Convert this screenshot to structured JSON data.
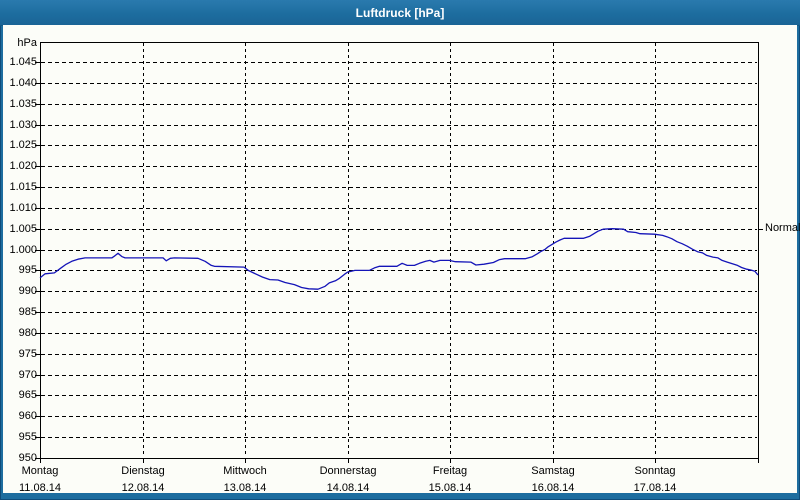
{
  "window": {
    "title": "Luftdruck [hPa]"
  },
  "colors": {
    "title_bar": "#1d6d9f",
    "line": "#1414b8",
    "grid": "#000000",
    "plot_background": "#fcfdf8"
  },
  "chart_data": {
    "type": "line",
    "title": "Luftdruck [hPa]",
    "unit_label": "hPa",
    "ylim": [
      950,
      1050
    ],
    "grid": "dashed",
    "legend_position": "none",
    "yticks": [
      {
        "value": 1045,
        "label": "1.045"
      },
      {
        "value": 1040,
        "label": "1.040"
      },
      {
        "value": 1035,
        "label": "1.035"
      },
      {
        "value": 1030,
        "label": "1.030"
      },
      {
        "value": 1025,
        "label": "1.025"
      },
      {
        "value": 1020,
        "label": "1.020"
      },
      {
        "value": 1015,
        "label": "1.015"
      },
      {
        "value": 1010,
        "label": "1.010"
      },
      {
        "value": 1005,
        "label": "1.005"
      },
      {
        "value": 1000,
        "label": "1.000"
      },
      {
        "value": 995,
        "label": "995"
      },
      {
        "value": 990,
        "label": "990"
      },
      {
        "value": 985,
        "label": "985"
      },
      {
        "value": 980,
        "label": "980"
      },
      {
        "value": 975,
        "label": "975"
      },
      {
        "value": 970,
        "label": "970"
      },
      {
        "value": 965,
        "label": "965"
      },
      {
        "value": 960,
        "label": "960"
      },
      {
        "value": 955,
        "label": "955"
      },
      {
        "value": 950,
        "label": "950"
      }
    ],
    "xdays": [
      {
        "name": "Montag",
        "date": "11.08.14"
      },
      {
        "name": "Dienstag",
        "date": "12.08.14"
      },
      {
        "name": "Mittwoch",
        "date": "13.08.14"
      },
      {
        "name": "Donnerstag",
        "date": "14.08.14"
      },
      {
        "name": "Freitag",
        "date": "15.08.14"
      },
      {
        "name": "Samstag",
        "date": "16.08.14"
      },
      {
        "name": "Sonntag",
        "date": "17.08.14"
      }
    ],
    "normal_marker": {
      "label": "Normal",
      "value": 1005
    },
    "series": [
      {
        "name": "Luftdruck",
        "color": "#1414b8",
        "points": [
          [
            0.0,
            993.2
          ],
          [
            0.05,
            994.2
          ],
          [
            0.14,
            994.4
          ],
          [
            0.2,
            995.5
          ],
          [
            0.25,
            996.4
          ],
          [
            0.31,
            997.2
          ],
          [
            0.37,
            997.7
          ],
          [
            0.44,
            998.0
          ],
          [
            0.7,
            998.0
          ],
          [
            0.73,
            998.5
          ],
          [
            0.76,
            999.1
          ],
          [
            0.8,
            998.3
          ],
          [
            0.83,
            998.0
          ],
          [
            1.2,
            998.0
          ],
          [
            1.23,
            997.3
          ],
          [
            1.27,
            997.9
          ],
          [
            1.31,
            998.0
          ],
          [
            1.54,
            997.9
          ],
          [
            1.61,
            997.2
          ],
          [
            1.67,
            996.2
          ],
          [
            1.7,
            996.0
          ],
          [
            1.99,
            995.8
          ],
          [
            2.03,
            995.0
          ],
          [
            2.1,
            994.2
          ],
          [
            2.17,
            993.4
          ],
          [
            2.24,
            992.8
          ],
          [
            2.32,
            992.7
          ],
          [
            2.39,
            992.1
          ],
          [
            2.48,
            991.6
          ],
          [
            2.55,
            990.9
          ],
          [
            2.62,
            990.6
          ],
          [
            2.71,
            990.5
          ],
          [
            2.78,
            991.2
          ],
          [
            2.82,
            992.0
          ],
          [
            2.88,
            992.5
          ],
          [
            2.92,
            993.1
          ],
          [
            2.97,
            994.1
          ],
          [
            3.0,
            994.6
          ],
          [
            3.07,
            995.0
          ],
          [
            3.21,
            995.0
          ],
          [
            3.26,
            995.6
          ],
          [
            3.31,
            996.0
          ],
          [
            3.48,
            996.0
          ],
          [
            3.53,
            996.7
          ],
          [
            3.58,
            996.2
          ],
          [
            3.65,
            996.2
          ],
          [
            3.7,
            996.7
          ],
          [
            3.76,
            997.2
          ],
          [
            3.8,
            997.4
          ],
          [
            3.84,
            997.0
          ],
          [
            3.9,
            997.4
          ],
          [
            3.99,
            997.4
          ],
          [
            4.05,
            997.1
          ],
          [
            4.2,
            997.0
          ],
          [
            4.25,
            996.3
          ],
          [
            4.33,
            996.5
          ],
          [
            4.42,
            996.9
          ],
          [
            4.48,
            997.6
          ],
          [
            4.53,
            997.8
          ],
          [
            4.73,
            997.8
          ],
          [
            4.8,
            998.3
          ],
          [
            4.85,
            999.0
          ],
          [
            4.88,
            999.5
          ],
          [
            4.92,
            1000.0
          ],
          [
            4.95,
            1000.6
          ],
          [
            4.99,
            1001.2
          ],
          [
            5.03,
            1001.8
          ],
          [
            5.07,
            1002.3
          ],
          [
            5.11,
            1002.7
          ],
          [
            5.3,
            1002.7
          ],
          [
            5.36,
            1003.2
          ],
          [
            5.4,
            1003.8
          ],
          [
            5.44,
            1004.4
          ],
          [
            5.49,
            1004.9
          ],
          [
            5.58,
            1005.0
          ],
          [
            5.69,
            1004.9
          ],
          [
            5.73,
            1004.3
          ],
          [
            5.81,
            1004.1
          ],
          [
            5.85,
            1003.8
          ],
          [
            5.99,
            1003.7
          ],
          [
            6.07,
            1003.4
          ],
          [
            6.11,
            1003.1
          ],
          [
            6.16,
            1002.6
          ],
          [
            6.21,
            1001.9
          ],
          [
            6.26,
            1001.4
          ],
          [
            6.31,
            1000.8
          ],
          [
            6.36,
            1000.1
          ],
          [
            6.41,
            999.5
          ],
          [
            6.46,
            999.2
          ],
          [
            6.5,
            998.6
          ],
          [
            6.56,
            998.2
          ],
          [
            6.61,
            998.0
          ],
          [
            6.65,
            997.4
          ],
          [
            6.7,
            997.0
          ],
          [
            6.75,
            996.6
          ],
          [
            6.8,
            996.2
          ],
          [
            6.84,
            995.7
          ],
          [
            6.89,
            995.3
          ],
          [
            6.93,
            995.1
          ],
          [
            6.97,
            994.8
          ],
          [
            7.0,
            993.9
          ]
        ]
      }
    ]
  }
}
